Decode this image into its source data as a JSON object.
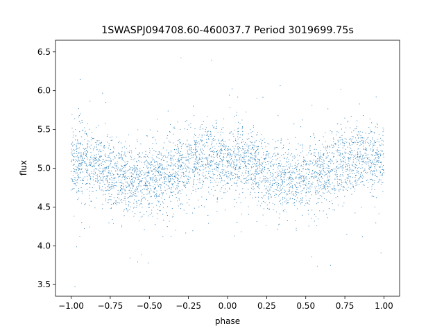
{
  "chart_data": {
    "type": "scatter",
    "title": "1SWASPJ094708.60-460037.7 Period 3019699.75s",
    "xlabel": "phase",
    "ylabel": "flux",
    "xlim": [
      -1.1,
      1.1
    ],
    "ylim": [
      3.35,
      6.65
    ],
    "xticks": [
      -1.0,
      -0.75,
      -0.5,
      -0.25,
      0.0,
      0.25,
      0.5,
      0.75,
      1.0
    ],
    "xtick_labels": [
      "−1.00",
      "−0.75",
      "−0.50",
      "−0.25",
      "0.00",
      "0.25",
      "0.50",
      "0.75",
      "1.00"
    ],
    "yticks": [
      3.5,
      4.0,
      4.5,
      5.0,
      5.5,
      6.0,
      6.5
    ],
    "ytick_labels": [
      "3.5",
      "4.0",
      "4.5",
      "5.0",
      "5.5",
      "6.0",
      "6.5"
    ],
    "grid": false,
    "legend": "none",
    "point_color": "#1f77b4",
    "series": [
      {
        "x_range": [
          -1.0,
          1.0
        ],
        "mean_flux_profile": {
          "phase": [
            -1.0,
            -0.9,
            -0.8,
            -0.7,
            -0.6,
            -0.5,
            -0.4,
            -0.3,
            -0.2,
            -0.1,
            0.0,
            0.1,
            0.2,
            0.3,
            0.4,
            0.5,
            0.6,
            0.7,
            0.8,
            0.9,
            1.0
          ],
          "flux": [
            5.05,
            5.1,
            5.0,
            4.9,
            4.85,
            4.85,
            4.9,
            5.0,
            5.1,
            5.15,
            5.05,
            5.1,
            5.0,
            4.9,
            4.85,
            4.85,
            4.9,
            5.0,
            5.1,
            5.15,
            5.05
          ]
        }
      }
    ]
  }
}
